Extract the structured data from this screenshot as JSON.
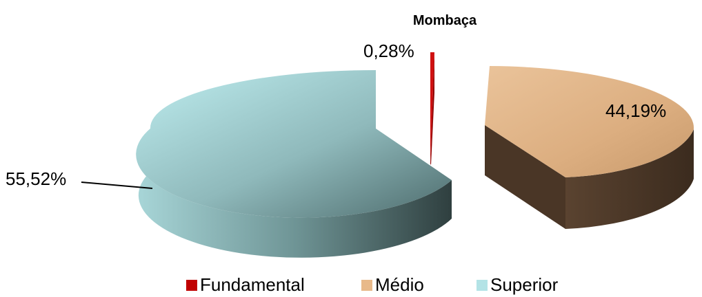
{
  "chart_data": {
    "type": "pie",
    "title_visible": "Mombaça",
    "categories": [
      "Fundamental",
      "Médio",
      "Superior"
    ],
    "values": [
      0.28,
      44.19,
      55.52
    ],
    "data_labels": [
      "0,28%",
      "44,19%",
      "55,52%"
    ],
    "colors": [
      "#c00000",
      "#e8b98a",
      "#b3e3e6"
    ],
    "legend_position": "bottom",
    "style": "3d-exploded"
  }
}
